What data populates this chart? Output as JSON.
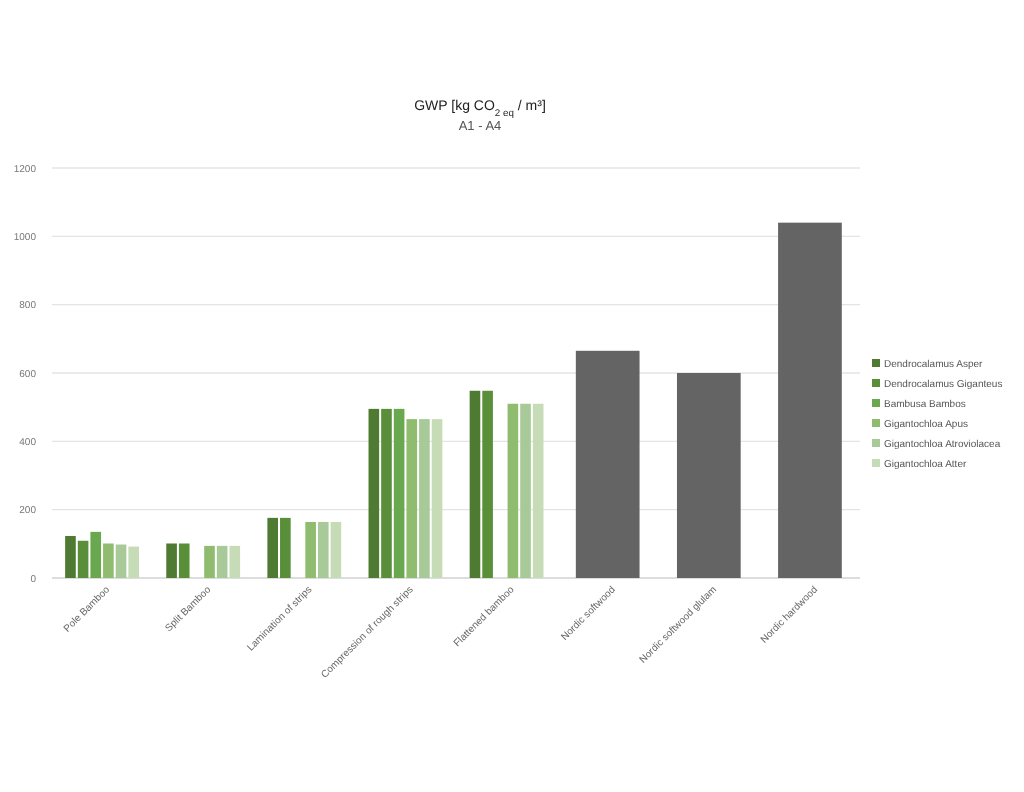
{
  "chart_data": {
    "type": "bar",
    "title": "GWP [kg CO$_{2 eq}$ / m³]",
    "subtitle": "A1 - A4",
    "categories": [
      "Pole Bamboo",
      "Split Bamboo",
      "Lamination of strips",
      "Compression of rough strips",
      "Flattened bamboo",
      "Nordic softwood",
      "Nordic softwood glulam",
      "Nordic hardwood"
    ],
    "series": [
      {
        "name": "Dendrocalamus Asper",
        "color": "#4e7a32",
        "values": [
          123,
          101,
          176,
          495,
          548,
          null,
          null,
          null
        ]
      },
      {
        "name": "Dendrocalamus Giganteus",
        "color": "#5a8f3a",
        "values": [
          109,
          101,
          176,
          495,
          548,
          null,
          null,
          null
        ]
      },
      {
        "name": "Bambusa Bambos",
        "color": "#6aa84f",
        "values": [
          135,
          null,
          null,
          495,
          null,
          null,
          null,
          null
        ]
      },
      {
        "name": "Gigantochloa Apus",
        "color": "#8fbc6f",
        "values": [
          101,
          94,
          164,
          465,
          510,
          null,
          null,
          null
        ]
      },
      {
        "name": "Gigantochloa Atroviolacea",
        "color": "#a8c998",
        "values": [
          98,
          94,
          164,
          465,
          510,
          null,
          null,
          null
        ]
      },
      {
        "name": "Gigantochloa Atter",
        "color": "#c5dcb6",
        "values": [
          92,
          94,
          164,
          465,
          510,
          null,
          null,
          null
        ]
      },
      {
        "color": "#646464",
        "values": [
          null,
          null,
          null,
          null,
          null,
          665,
          600,
          1040
        ]
      }
    ],
    "ylim": [
      0,
      1200
    ],
    "yticks": [
      0,
      200,
      400,
      600,
      800,
      1000,
      1200
    ],
    "grid": "y",
    "legend": "right"
  }
}
